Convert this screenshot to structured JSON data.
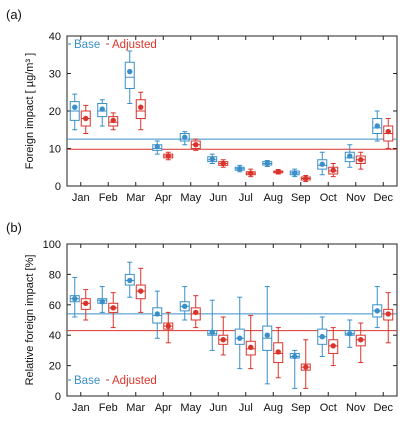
{
  "chart_data": [
    {
      "panel_label": "(a)",
      "type": "boxplot",
      "ylabel": "Foreign impact [ µg/m³ ]",
      "ylim": [
        0,
        40
      ],
      "yticks": [
        0,
        10,
        20,
        30,
        40
      ],
      "categories": [
        "Jan",
        "Feb",
        "Mar",
        "Apr",
        "May",
        "Jun",
        "Jul",
        "Aug",
        "Sep",
        "Oct",
        "Nov",
        "Dec"
      ],
      "legend": {
        "position": "top-left",
        "base": "Base",
        "adjusted": "Adjusted"
      },
      "reference_lines": {
        "base": 12.5,
        "adjusted": 9.8
      },
      "series": [
        {
          "name": "Base",
          "color": "#3a8fc8",
          "boxes": [
            {
              "whisker_low": 15,
              "q1": 17.5,
              "median": 20,
              "q3": 22.5,
              "whisker_high": 24.5,
              "mean": 21
            },
            {
              "whisker_low": 16,
              "q1": 18.5,
              "median": 20,
              "q3": 22,
              "whisker_high": 23,
              "mean": 20.5
            },
            {
              "whisker_low": 22,
              "q1": 26,
              "median": 29,
              "q3": 33,
              "whisker_high": 36,
              "mean": 30.5
            },
            {
              "whisker_low": 8.5,
              "q1": 9.5,
              "median": 10,
              "q3": 11,
              "whisker_high": 12,
              "mean": 10.5
            },
            {
              "whisker_low": 11,
              "q1": 12,
              "median": 12.5,
              "q3": 14,
              "whisker_high": 14.5,
              "mean": 13
            },
            {
              "whisker_low": 6,
              "q1": 6.5,
              "median": 7,
              "q3": 7.8,
              "whisker_high": 8.5,
              "mean": 7.2
            },
            {
              "whisker_low": 3.8,
              "q1": 4.2,
              "median": 4.6,
              "q3": 5,
              "whisker_high": 5.5,
              "mean": 4.6
            },
            {
              "whisker_low": 5.2,
              "q1": 5.6,
              "median": 6,
              "q3": 6.5,
              "whisker_high": 6.8,
              "mean": 6
            },
            {
              "whisker_low": 2.5,
              "q1": 3,
              "median": 3.5,
              "q3": 4,
              "whisker_high": 4.5,
              "mean": 3.4
            },
            {
              "whisker_low": 3,
              "q1": 4.5,
              "median": 5.5,
              "q3": 7,
              "whisker_high": 9,
              "mean": 5.8
            },
            {
              "whisker_low": 5,
              "q1": 6.5,
              "median": 7.5,
              "q3": 9,
              "whisker_high": 11,
              "mean": 8
            },
            {
              "whisker_low": 12,
              "q1": 14,
              "median": 15.5,
              "q3": 18,
              "whisker_high": 20,
              "mean": 16
            }
          ]
        },
        {
          "name": "Adjusted",
          "color": "#d9342b",
          "boxes": [
            {
              "whisker_low": 14,
              "q1": 16,
              "median": 18,
              "q3": 20,
              "whisker_high": 21.5,
              "mean": 18
            },
            {
              "whisker_low": 15,
              "q1": 16,
              "median": 17,
              "q3": 18.5,
              "whisker_high": 19.5,
              "mean": 17.5
            },
            {
              "whisker_low": 15,
              "q1": 18,
              "median": 20,
              "q3": 23,
              "whisker_high": 25,
              "mean": 21
            },
            {
              "whisker_low": 7,
              "q1": 7.5,
              "median": 8,
              "q3": 8.5,
              "whisker_high": 9,
              "mean": 8
            },
            {
              "whisker_low": 9.5,
              "q1": 10,
              "median": 11,
              "q3": 12,
              "whisker_high": 12.5,
              "mean": 11
            },
            {
              "whisker_low": 5,
              "q1": 5.5,
              "median": 6,
              "q3": 6.5,
              "whisker_high": 7,
              "mean": 6
            },
            {
              "whisker_low": 2.5,
              "q1": 3,
              "median": 3.4,
              "q3": 3.8,
              "whisker_high": 4.5,
              "mean": 3.4
            },
            {
              "whisker_low": 3.2,
              "q1": 3.5,
              "median": 3.8,
              "q3": 4,
              "whisker_high": 4.4,
              "mean": 3.8
            },
            {
              "whisker_low": 1.2,
              "q1": 1.6,
              "median": 2,
              "q3": 2.4,
              "whisker_high": 2.8,
              "mean": 2
            },
            {
              "whisker_low": 2.5,
              "q1": 3.2,
              "median": 4,
              "q3": 5,
              "whisker_high": 6,
              "mean": 4.2
            },
            {
              "whisker_low": 4.5,
              "q1": 6,
              "median": 7,
              "q3": 8,
              "whisker_high": 9,
              "mean": 7
            },
            {
              "whisker_low": 10,
              "q1": 12,
              "median": 14,
              "q3": 16,
              "whisker_high": 18,
              "mean": 14.5
            }
          ]
        }
      ]
    },
    {
      "panel_label": "(b)",
      "type": "boxplot",
      "ylabel": "Relative foreign impact [%]",
      "ylim": [
        0,
        100
      ],
      "yticks": [
        0,
        20,
        40,
        60,
        80,
        100
      ],
      "categories": [
        "Jan",
        "Feb",
        "Mar",
        "Apr",
        "May",
        "Jun",
        "Jul",
        "Aug",
        "Sep",
        "Oct",
        "Nov",
        "Dec"
      ],
      "legend": {
        "position": "bottom-left",
        "base": "Base",
        "adjusted": "Adjusted"
      },
      "reference_lines": {
        "base": 54,
        "adjusted": 43
      },
      "series": [
        {
          "name": "Base",
          "color": "#3a8fc8",
          "boxes": [
            {
              "whisker_low": 52,
              "q1": 62,
              "median": 64,
              "q3": 66,
              "whisker_high": 78,
              "mean": 64
            },
            {
              "whisker_low": 55,
              "q1": 61,
              "median": 63,
              "q3": 64,
              "whisker_high": 72,
              "mean": 62
            },
            {
              "whisker_low": 65,
              "q1": 73,
              "median": 76,
              "q3": 80,
              "whisker_high": 88,
              "mean": 76
            },
            {
              "whisker_low": 38,
              "q1": 48,
              "median": 53,
              "q3": 58,
              "whisker_high": 69,
              "mean": 54
            },
            {
              "whisker_low": 50,
              "q1": 56,
              "median": 59,
              "q3": 62,
              "whisker_high": 72,
              "mean": 59
            },
            {
              "whisker_low": 30,
              "q1": 40,
              "median": 41,
              "q3": 43,
              "whisker_high": 63,
              "mean": 42
            },
            {
              "whisker_low": 18,
              "q1": 34,
              "median": 38,
              "q3": 44,
              "whisker_high": 65,
              "mean": 38
            },
            {
              "whisker_low": 8,
              "q1": 30,
              "median": 38,
              "q3": 46,
              "whisker_high": 72,
              "mean": 40
            },
            {
              "whisker_low": 5,
              "q1": 25,
              "median": 26,
              "q3": 28,
              "whisker_high": 30,
              "mean": 26
            },
            {
              "whisker_low": 26,
              "q1": 34,
              "median": 39,
              "q3": 44,
              "whisker_high": 52,
              "mean": 39
            },
            {
              "whisker_low": 32,
              "q1": 40,
              "median": 41,
              "q3": 43,
              "whisker_high": 50,
              "mean": 41
            },
            {
              "whisker_low": 45,
              "q1": 52,
              "median": 56,
              "q3": 60,
              "whisker_high": 72,
              "mean": 56
            }
          ]
        },
        {
          "name": "Adjusted",
          "color": "#d9342b",
          "boxes": [
            {
              "whisker_low": 50,
              "q1": 57,
              "median": 61,
              "q3": 64,
              "whisker_high": 70,
              "mean": 61
            },
            {
              "whisker_low": 45,
              "q1": 55,
              "median": 58,
              "q3": 61,
              "whisker_high": 68,
              "mean": 58
            },
            {
              "whisker_low": 55,
              "q1": 64,
              "median": 69,
              "q3": 73,
              "whisker_high": 84,
              "mean": 69
            },
            {
              "whisker_low": 35,
              "q1": 44,
              "median": 46,
              "q3": 48,
              "whisker_high": 55,
              "mean": 46
            },
            {
              "whisker_low": 45,
              "q1": 50,
              "median": 54,
              "q3": 58,
              "whisker_high": 66,
              "mean": 55
            },
            {
              "whisker_low": 27,
              "q1": 34,
              "median": 37,
              "q3": 40,
              "whisker_high": 52,
              "mean": 37
            },
            {
              "whisker_low": 18,
              "q1": 27,
              "median": 31,
              "q3": 36,
              "whisker_high": 53,
              "mean": 32
            },
            {
              "whisker_low": 12,
              "q1": 22,
              "median": 28,
              "q3": 35,
              "whisker_high": 45,
              "mean": 29
            },
            {
              "whisker_low": 5,
              "q1": 17,
              "median": 19,
              "q3": 21,
              "whisker_high": 37,
              "mean": 19
            },
            {
              "whisker_low": 20,
              "q1": 28,
              "median": 33,
              "q3": 37,
              "whisker_high": 45,
              "mean": 33
            },
            {
              "whisker_low": 22,
              "q1": 33,
              "median": 37,
              "q3": 40,
              "whisker_high": 48,
              "mean": 37
            },
            {
              "whisker_low": 35,
              "q1": 50,
              "median": 54,
              "q3": 57,
              "whisker_high": 68,
              "mean": 54
            }
          ]
        }
      ]
    }
  ]
}
